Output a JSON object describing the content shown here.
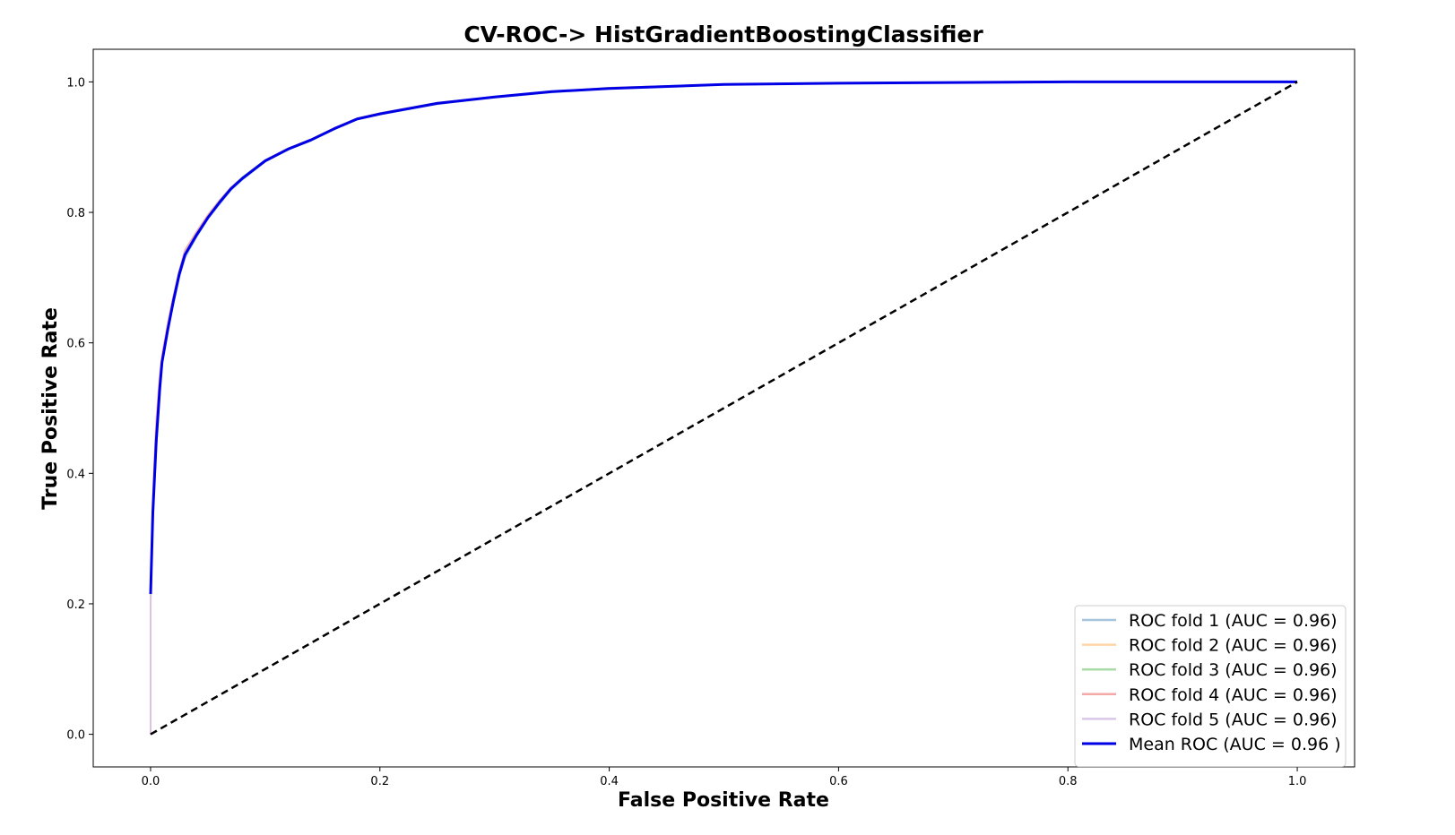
{
  "chart_data": {
    "type": "line",
    "title": "CV-ROC-> HistGradientBoostingClassifier",
    "xlabel": "False Positive Rate",
    "ylabel": "True Positive Rate",
    "xlim": [
      -0.05,
      1.05
    ],
    "ylim": [
      -0.05,
      1.05
    ],
    "xticks": [
      "0.0",
      "0.2",
      "0.4",
      "0.6",
      "0.8",
      "1.0"
    ],
    "yticks": [
      "0.0",
      "0.2",
      "0.4",
      "0.6",
      "0.8",
      "1.0"
    ],
    "grid": false,
    "legend_position": "lower-right",
    "x": [
      0,
      0,
      0.002,
      0.005,
      0.008,
      0.01,
      0.015,
      0.02,
      0.025,
      0.03,
      0.04,
      0.05,
      0.06,
      0.07,
      0.08,
      0.1,
      0.12,
      0.14,
      0.16,
      0.18,
      0.2,
      0.25,
      0.3,
      0.35,
      0.4,
      0.5,
      0.6,
      0.7,
      0.8,
      0.9,
      1.0
    ],
    "series": [
      {
        "name": "ROC fold 1 (AUC = 0.96)",
        "color": "#a6c4dc",
        "y": [
          0,
          0.2,
          0.33,
          0.44,
          0.52,
          0.57,
          0.62,
          0.66,
          0.7,
          0.73,
          0.762,
          0.79,
          0.812,
          0.834,
          0.85,
          0.878,
          0.896,
          0.91,
          0.927,
          0.943,
          0.95,
          0.966,
          0.976,
          0.984,
          0.99,
          0.996,
          0.998,
          0.999,
          1.0,
          1.0,
          1.0
        ]
      },
      {
        "name": "ROC fold 2 (AUC = 0.96)",
        "color": "#ffd5a8",
        "y": [
          0,
          0.21,
          0.34,
          0.45,
          0.53,
          0.57,
          0.62,
          0.665,
          0.705,
          0.735,
          0.765,
          0.792,
          0.815,
          0.836,
          0.852,
          0.879,
          0.897,
          0.911,
          0.928,
          0.943,
          0.951,
          0.967,
          0.977,
          0.985,
          0.99,
          0.996,
          0.998,
          0.999,
          1.0,
          1.0,
          1.0
        ]
      },
      {
        "name": "ROC fold 3 (AUC = 0.96)",
        "color": "#a9dca6",
        "y": [
          0,
          0.22,
          0.35,
          0.46,
          0.54,
          0.575,
          0.625,
          0.67,
          0.71,
          0.74,
          0.768,
          0.795,
          0.818,
          0.838,
          0.854,
          0.88,
          0.898,
          0.912,
          0.929,
          0.944,
          0.952,
          0.968,
          0.977,
          0.985,
          0.991,
          0.996,
          0.998,
          0.999,
          1.0,
          1.0,
          1.0
        ]
      },
      {
        "name": "ROC fold 4 (AUC = 0.96)",
        "color": "#f3a9a7",
        "y": [
          0,
          0.22,
          0.36,
          0.48,
          0.55,
          0.58,
          0.63,
          0.672,
          0.71,
          0.742,
          0.77,
          0.796,
          0.818,
          0.838,
          0.853,
          0.88,
          0.898,
          0.912,
          0.929,
          0.944,
          0.952,
          0.968,
          0.977,
          0.985,
          0.991,
          0.996,
          0.998,
          0.999,
          1.0,
          1.0,
          1.0
        ]
      },
      {
        "name": "ROC fold 5 (AUC = 0.96)",
        "color": "#d9c6e8",
        "y": [
          0,
          0.215,
          0.35,
          0.46,
          0.54,
          0.572,
          0.622,
          0.668,
          0.707,
          0.738,
          0.766,
          0.793,
          0.816,
          0.837,
          0.853,
          0.879,
          0.897,
          0.911,
          0.928,
          0.943,
          0.951,
          0.967,
          0.977,
          0.985,
          0.99,
          0.996,
          0.998,
          0.999,
          1.0,
          1.0,
          1.0
        ]
      },
      {
        "name": "Mean ROC (AUC = 0.96 )",
        "color": "#0000e6",
        "y": [
          0.215,
          0.215,
          0.34,
          0.45,
          0.53,
          0.57,
          0.62,
          0.665,
          0.705,
          0.735,
          0.765,
          0.792,
          0.815,
          0.836,
          0.852,
          0.879,
          0.897,
          0.911,
          0.928,
          0.943,
          0.951,
          0.967,
          0.977,
          0.985,
          0.99,
          0.996,
          0.998,
          0.999,
          1.0,
          1.0,
          1.0
        ]
      }
    ],
    "chance_line": {
      "x": [
        0,
        1
      ],
      "y": [
        0,
        1
      ],
      "color": "#000000",
      "style": "dashed"
    }
  }
}
